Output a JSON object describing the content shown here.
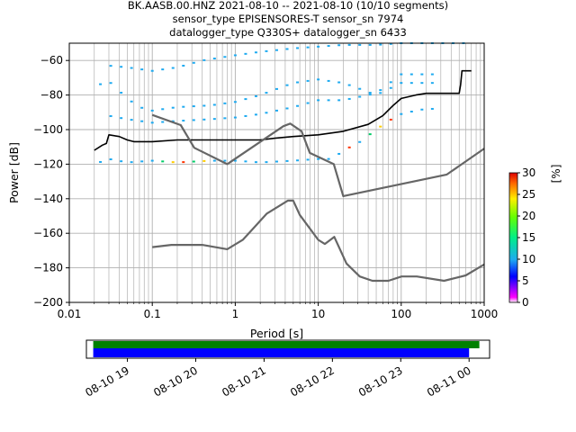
{
  "chart_data": [
    {
      "type": "heatmap",
      "title_lines": [
        "BK.AASB.00.HNZ   2021-08-10 -- 2021-08-10  (10/10 segments)",
        "sensor_type EPISENSORES-T sensor_sn 7974",
        "datalogger_type Q330S+ datalogger_sn 6433"
      ],
      "xlabel": "Period [s]",
      "ylabel": "Power [dB]",
      "xscale": "log",
      "xlim": [
        0.01,
        1000
      ],
      "ylim": [
        -200,
        -50
      ],
      "x_ticks": [
        0.01,
        0.1,
        1,
        10,
        100,
        1000
      ],
      "x_tick_labels": [
        "0.01",
        "0.1",
        "1",
        "10",
        "100",
        "1000"
      ],
      "y_ticks": [
        -200,
        -180,
        -160,
        -140,
        -120,
        -100,
        -80,
        -60
      ],
      "y_tick_labels": [
        "−200",
        "−180",
        "−160",
        "−140",
        "−120",
        "−100",
        "−80",
        "−60"
      ],
      "grid": true,
      "colorbar": {
        "label": "[%]",
        "range": [
          0,
          30
        ],
        "ticks": [
          0,
          5,
          10,
          15,
          20,
          25,
          30
        ],
        "tick_labels": [
          "0",
          "5",
          "10",
          "15",
          "20",
          "25",
          "30"
        ]
      },
      "series": [
        {
          "role": "mode",
          "color": "#000000",
          "x": [
            0.02,
            0.025,
            0.028,
            0.03,
            0.04,
            0.05,
            0.06,
            0.08,
            0.1,
            0.2,
            0.5,
            1,
            2,
            3,
            5,
            10,
            20,
            40,
            60,
            80,
            100,
            150,
            200,
            300,
            400,
            500,
            520,
            540,
            600,
            700
          ],
          "y": [
            -112,
            -109,
            -108,
            -103,
            -104,
            -106,
            -107,
            -107,
            -107,
            -106,
            -106,
            -106,
            -106,
            -105,
            -104,
            -103,
            -101,
            -97,
            -92,
            -86,
            -82,
            -80,
            -79,
            -79,
            -79,
            -79,
            -74,
            -66,
            -66,
            -66
          ]
        },
        {
          "role": "noise-model-high",
          "color": "#666666",
          "x": [
            0.1,
            0.22,
            0.32,
            0.8,
            3.8,
            4.6,
            6.3,
            7.9,
            15.4,
            20,
            354.8,
            1000
          ],
          "y": [
            -91.5,
            -97.4,
            -110.5,
            -120,
            -98,
            -96.5,
            -101,
            -113.5,
            -120,
            -138.5,
            -126,
            -111
          ]
        },
        {
          "role": "noise-model-low",
          "color": "#666666",
          "x": [
            0.1,
            0.17,
            0.4,
            0.8,
            1.24,
            2.4,
            4.3,
            5,
            6,
            10,
            12,
            15.6,
            21.9,
            31.6,
            45,
            70,
            101,
            154,
            328,
            600,
            1000
          ],
          "y": [
            -168,
            -166.7,
            -166.7,
            -169.2,
            -163.7,
            -148.6,
            -141.1,
            -141.1,
            -149.4,
            -163.8,
            -166.2,
            -162.1,
            -177.5,
            -185,
            -187.5,
            -187.5,
            -185,
            -185,
            -187.5,
            -184.4,
            -178
          ]
        },
        {
          "role": "psd-band-upper",
          "color": "#1eaaf0",
          "x": [
            0.03,
            0.05,
            0.1,
            0.2,
            0.4,
            1,
            2,
            5,
            10,
            20,
            50,
            100,
            200,
            300,
            600
          ],
          "y": [
            -63,
            -64,
            -66,
            -64,
            -60,
            -57,
            -55,
            -53,
            -52,
            -51,
            -51,
            -50,
            -50,
            -50,
            -50
          ]
        },
        {
          "role": "psd-band-mid1",
          "color": "#1eaaf0",
          "x": [
            0.02,
            0.03,
            0.05,
            0.07,
            0.1,
            0.2,
            0.5,
            1,
            2,
            5,
            10,
            20,
            30,
            50,
            100,
            200,
            300
          ],
          "y": [
            -75,
            -72,
            -82,
            -87,
            -89,
            -87,
            -86,
            -84,
            -80,
            -73,
            -71,
            -73,
            -76,
            -80,
            -73,
            -73,
            -73
          ]
        },
        {
          "role": "psd-band-mid2",
          "color": "#1eaaf0",
          "x": [
            0.03,
            0.05,
            0.1,
            0.2,
            0.5,
            1,
            2,
            5,
            10,
            20,
            50,
            100,
            200,
            300
          ],
          "y": [
            -92,
            -94,
            -96,
            -95,
            -94,
            -93,
            -91,
            -87,
            -83,
            -83,
            -79,
            -68,
            -68,
            -68
          ]
        },
        {
          "role": "psd-band-lower",
          "color": "#1eaaf0",
          "x": [
            0.02,
            0.03,
            0.05,
            0.1,
            0.2,
            0.5,
            1,
            2,
            5,
            10,
            15,
            20,
            30,
            50,
            70,
            100,
            150,
            200,
            300
          ],
          "y": [
            -120,
            -117,
            -119,
            -118,
            -119,
            -118,
            -118,
            -119,
            -118,
            -117,
            -117,
            -112,
            -108,
            -100,
            -95,
            -91,
            -89,
            -88,
            -88
          ]
        }
      ]
    },
    {
      "type": "timeline",
      "x_tick_labels": [
        "08-10 19",
        "08-10 20",
        "08-10 21",
        "08-10 22",
        "08-10 23",
        "08-11 00"
      ],
      "bars": [
        {
          "color": "#008000",
          "start_hour": 18.5,
          "end_hour": 24.15
        },
        {
          "color": "#0000ff",
          "start_hour": 18.5,
          "end_hour": 24.0
        }
      ]
    }
  ]
}
